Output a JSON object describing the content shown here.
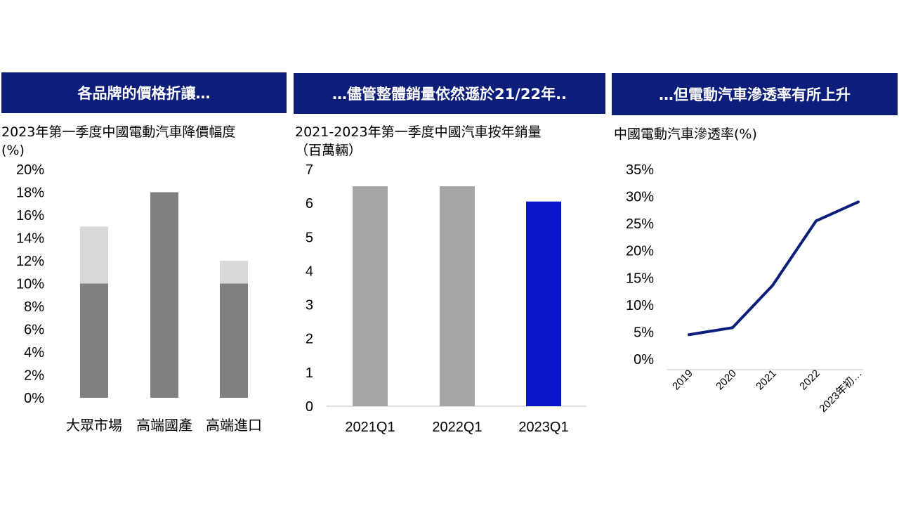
{
  "panels": [
    {
      "banner": "各品牌的價格折讓…",
      "subtitle": "2023年第一季度中國電動汽車降價幅度",
      "unit": "(%)"
    },
    {
      "banner": "…儘管整體銷量依然遜於21/22年..",
      "subtitle": "2021-2023年第一季度中國汽車按年銷量",
      "unit": "（百萬輛）"
    },
    {
      "banner": "…但電動汽車滲透率有所上升",
      "subtitle": "中國電動汽車滲透率(%)"
    }
  ],
  "chart_data": [
    {
      "type": "bar",
      "stacked": true,
      "categories": [
        "大眾市場",
        "高端國產",
        "高端進口"
      ],
      "series": [
        {
          "values": [
            10,
            18,
            10
          ],
          "color": "#808080"
        },
        {
          "values": [
            5,
            0,
            2
          ],
          "color": "#d9d9d9"
        }
      ],
      "ylim": [
        0,
        20
      ],
      "yticks": [
        "0%",
        "2%",
        "4%",
        "6%",
        "8%",
        "10%",
        "12%",
        "14%",
        "16%",
        "18%",
        "20%"
      ],
      "grid": false
    },
    {
      "type": "bar",
      "categories": [
        "2021Q1",
        "2022Q1",
        "2023Q1"
      ],
      "values": [
        6.5,
        6.5,
        6.05
      ],
      "colors": [
        "#a6a6a6",
        "#a6a6a6",
        "#0a14c8"
      ],
      "ylim": [
        0,
        7
      ],
      "yticks": [
        "0",
        "1",
        "2",
        "3",
        "4",
        "5",
        "6",
        "7"
      ],
      "grid": false
    },
    {
      "type": "line",
      "x": [
        "2019",
        "2020",
        "2021",
        "2022",
        "2023年初…"
      ],
      "values": [
        4.5,
        5.8,
        13.6,
        25.5,
        29.0
      ],
      "color": "#0c1e7a",
      "ylim": [
        0,
        35
      ],
      "yticks": [
        "0%",
        "5%",
        "10%",
        "15%",
        "20%",
        "25%",
        "30%",
        "35%"
      ],
      "grid": false
    }
  ]
}
